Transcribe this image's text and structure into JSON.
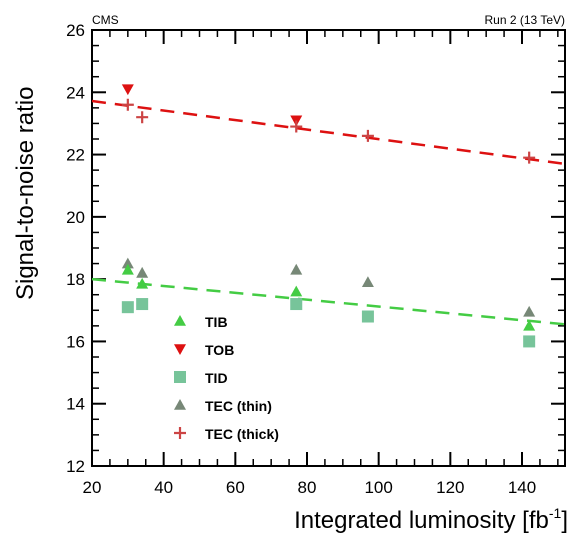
{
  "chart_data": {
    "type": "scatter",
    "top_left_label": "CMS",
    "top_right_label": "Run 2 (13 TeV)",
    "xlabel": "Integrated luminosity [fb",
    "xlabel_sup": "-1",
    "xlabel_end": "]",
    "ylabel": "Signal-to-noise ratio",
    "xlim": [
      20,
      152
    ],
    "ylim": [
      12,
      26
    ],
    "x_ticks": [
      20,
      40,
      60,
      80,
      100,
      120,
      140
    ],
    "x_tick_labels": [
      "20",
      "40",
      "60",
      "80",
      "100",
      "120",
      "140"
    ],
    "y_ticks": [
      12,
      14,
      16,
      18,
      20,
      22,
      24,
      26
    ],
    "y_tick_labels": [
      "12",
      "14",
      "16",
      "18",
      "20",
      "22",
      "24",
      "26"
    ],
    "legend_position": "bottom-left",
    "series": [
      {
        "name": "TIB",
        "color": "#44cc44",
        "marker": "triangle-up",
        "x": [
          30,
          34,
          77,
          142
        ],
        "y": [
          18.3,
          17.85,
          17.6,
          16.5
        ]
      },
      {
        "name": "TOB",
        "color": "#dd1111",
        "marker": "triangle-down",
        "x": [
          30,
          77
        ],
        "y": [
          24.1,
          23.1
        ]
      },
      {
        "name": "TID",
        "color": "#77c49a",
        "marker": "square",
        "x": [
          30,
          34,
          77,
          97,
          142
        ],
        "y": [
          17.1,
          17.2,
          17.2,
          16.8,
          16.0
        ]
      },
      {
        "name": "TEC (thin)",
        "color": "#778877",
        "marker": "triangle-up",
        "x": [
          30,
          34,
          77,
          97,
          142
        ],
        "y": [
          18.5,
          18.2,
          18.3,
          17.9,
          16.95
        ]
      },
      {
        "name": "TEC (thick)",
        "color": "#cc4444",
        "marker": "cross",
        "x": [
          30,
          34,
          77,
          97,
          142
        ],
        "y": [
          23.6,
          23.2,
          22.9,
          22.6,
          21.9
        ]
      }
    ],
    "fits": [
      {
        "color": "#dd1111",
        "x": [
          20,
          152
        ],
        "y": [
          23.72,
          21.7
        ]
      },
      {
        "color": "#44cc44",
        "x": [
          20,
          152
        ],
        "y": [
          18.0,
          16.55
        ]
      }
    ]
  }
}
